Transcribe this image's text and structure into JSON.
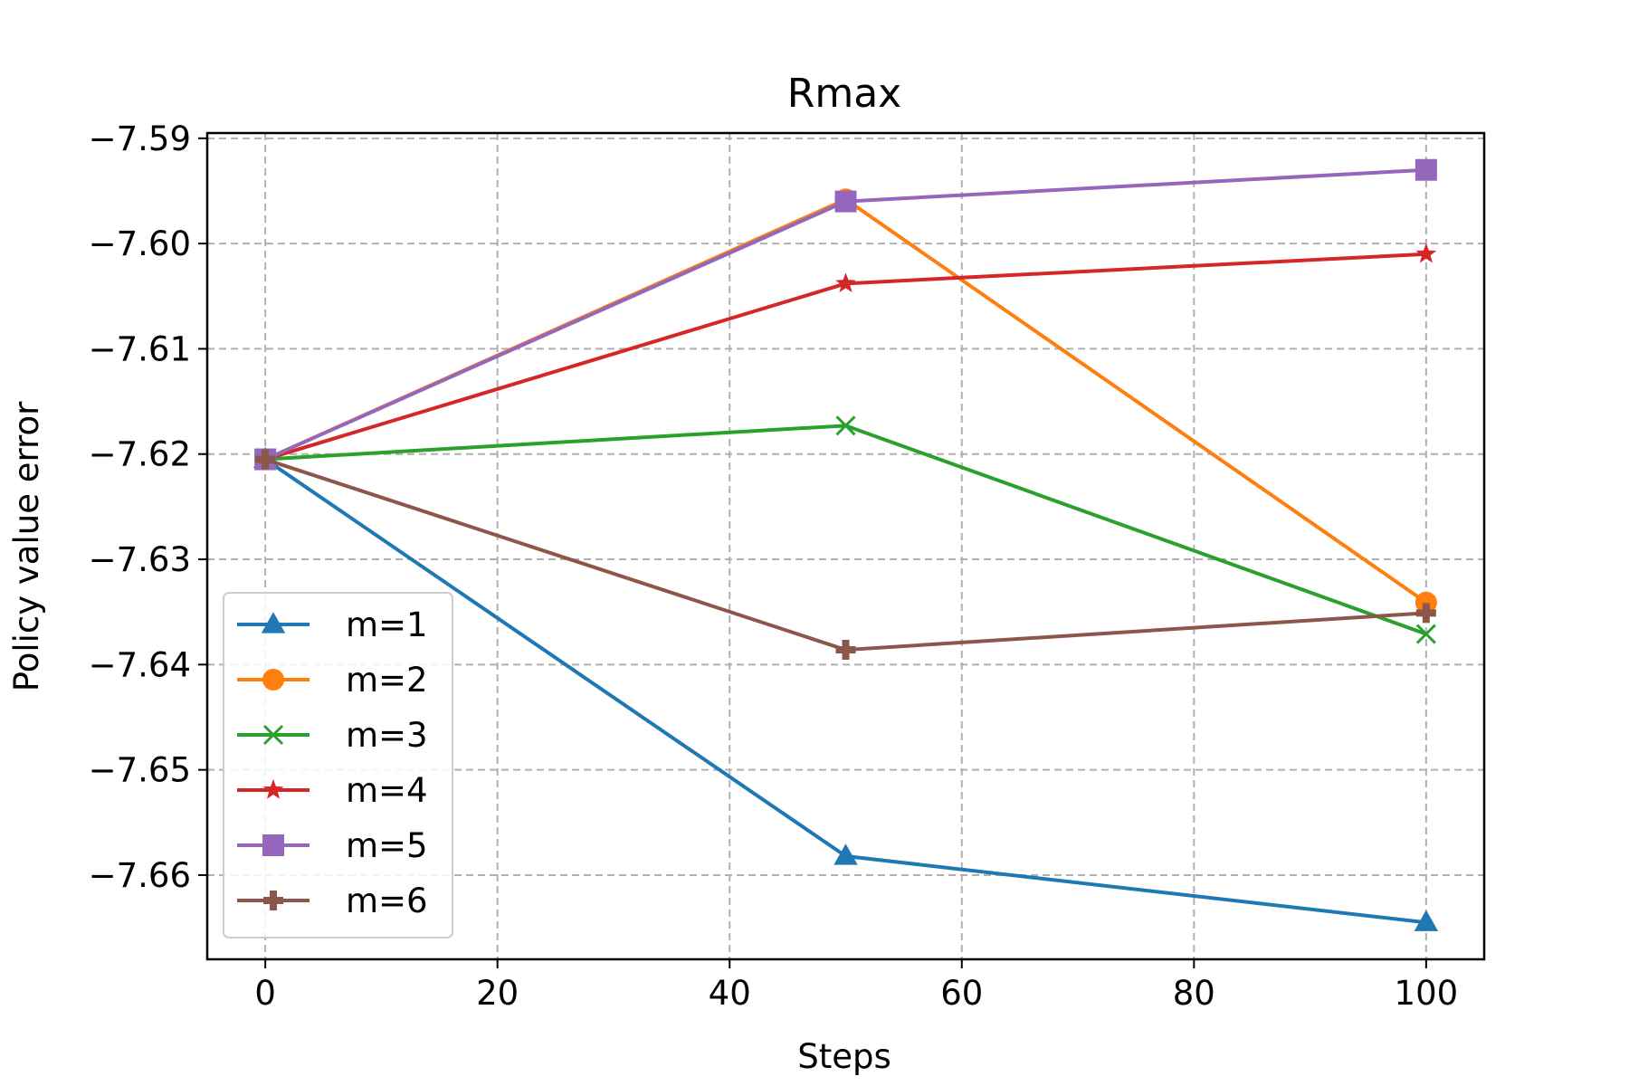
{
  "chart_data": {
    "type": "line",
    "title": "Rmax",
    "xlabel": "Steps",
    "ylabel": "Policy value error",
    "xlim": [
      -5,
      105
    ],
    "ylim": [
      -7.668,
      -7.5895
    ],
    "xticks": [
      0,
      20,
      40,
      60,
      80,
      100
    ],
    "xtick_labels": [
      "0",
      "20",
      "40",
      "60",
      "80",
      "100"
    ],
    "yticks": [
      -7.59,
      -7.6,
      -7.61,
      -7.62,
      -7.63,
      -7.64,
      -7.65,
      -7.66
    ],
    "ytick_labels": [
      "−7.59",
      "−7.60",
      "−7.61",
      "−7.62",
      "−7.63",
      "−7.64",
      "−7.65",
      "−7.66"
    ],
    "grid": true,
    "legend_position": "lower-left",
    "x": [
      0,
      50,
      100
    ],
    "series": [
      {
        "name": "m=1",
        "color": "#1f77b4",
        "marker": "triangle",
        "values": [
          -7.6205,
          -7.6582,
          -7.6645
        ]
      },
      {
        "name": "m=2",
        "color": "#ff7f0e",
        "marker": "circle",
        "values": [
          -7.6205,
          -7.5958,
          -7.6341
        ]
      },
      {
        "name": "m=3",
        "color": "#2ca02c",
        "marker": "x",
        "values": [
          -7.6205,
          -7.6173,
          -7.6371
        ]
      },
      {
        "name": "m=4",
        "color": "#d62728",
        "marker": "star",
        "values": [
          -7.6205,
          -7.6038,
          -7.601
        ]
      },
      {
        "name": "m=5",
        "color": "#9467bd",
        "marker": "square",
        "values": [
          -7.6205,
          -7.596,
          -7.593
        ]
      },
      {
        "name": "m=6",
        "color": "#8c564b",
        "marker": "plus",
        "values": [
          -7.6205,
          -7.6386,
          -7.6351
        ]
      }
    ]
  }
}
